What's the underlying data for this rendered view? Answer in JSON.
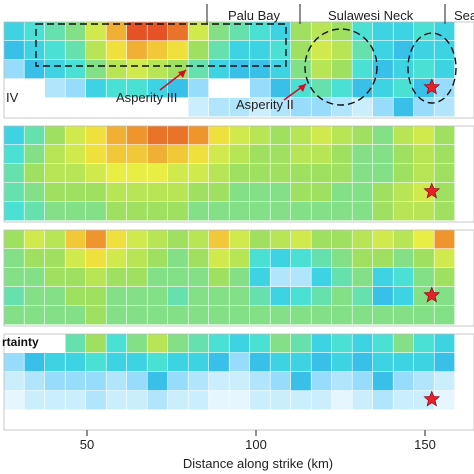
{
  "figure": {
    "xlabel": "Distance along strike (km)",
    "x_ticks": [
      50,
      100,
      150
    ],
    "region_labels": [
      "Palu Bay",
      "Sulawesi Neck",
      "Sea"
    ],
    "asperity_labels": [
      "IV",
      "Asperity III",
      "Asperity II"
    ],
    "panel4_label": "rtainty",
    "epicenter_symbol": "red-star",
    "colormap": [
      "#2040d0",
      "#30a0f0",
      "#40e0e0",
      "#a0e060",
      "#f0f040",
      "#f0a030",
      "#e03020"
    ],
    "star_color": "#e8202a"
  },
  "chart_data": {
    "type": "heatmap",
    "xlabel": "Distance along strike (km)",
    "x_ticks": [
      50,
      100,
      150
    ],
    "cell_width_km": 10,
    "epicenter_km": 152,
    "panels": [
      {
        "name": "",
        "rows": [
          [
            0.3,
            0.35,
            0.4,
            0.45,
            0.6,
            0.8,
            0.95,
            0.95,
            0.9,
            0.6,
            0.45,
            0.4,
            0.35,
            0.3,
            0.5,
            0.55,
            0.5,
            0.35,
            0.3,
            0.3,
            0.35,
            0.3
          ],
          [
            0.25,
            0.3,
            0.35,
            0.4,
            0.55,
            0.7,
            0.8,
            0.75,
            0.7,
            0.5,
            0.4,
            0.3,
            0.3,
            0.35,
            0.5,
            0.6,
            0.55,
            0.4,
            0.3,
            0.25,
            0.3,
            0.3
          ],
          [
            0.2,
            0.25,
            0.3,
            0.35,
            0.45,
            0.55,
            0.6,
            0.55,
            0.5,
            0.4,
            0.3,
            0.25,
            0.25,
            0.3,
            0.45,
            0.55,
            0.5,
            0.35,
            0.25,
            0.3,
            0.35,
            0.3
          ],
          [
            0.0,
            0.0,
            0.15,
            0.2,
            0.3,
            0.35,
            0.35,
            0.3,
            0.25,
            0.2,
            0.0,
            0.0,
            0.2,
            0.25,
            0.35,
            0.4,
            0.35,
            0.25,
            0.3,
            0.35,
            0.25,
            0.2
          ],
          [
            0.0,
            0.0,
            0.0,
            0.0,
            0.0,
            0.0,
            0.0,
            0.0,
            0.0,
            0.1,
            0.15,
            0.15,
            0.1,
            0.15,
            0.2,
            0.2,
            0.15,
            0.1,
            0.2,
            0.25,
            0.2,
            0.15
          ]
        ]
      },
      {
        "name": "",
        "rows": [
          [
            0.3,
            0.4,
            0.5,
            0.6,
            0.7,
            0.8,
            0.85,
            0.9,
            0.9,
            0.85,
            0.7,
            0.6,
            0.55,
            0.5,
            0.55,
            0.6,
            0.55,
            0.5,
            0.45,
            0.55,
            0.6,
            0.5
          ],
          [
            0.35,
            0.45,
            0.55,
            0.6,
            0.7,
            0.75,
            0.75,
            0.8,
            0.75,
            0.7,
            0.6,
            0.55,
            0.5,
            0.5,
            0.55,
            0.55,
            0.5,
            0.45,
            0.45,
            0.5,
            0.55,
            0.5
          ],
          [
            0.4,
            0.5,
            0.55,
            0.55,
            0.6,
            0.65,
            0.65,
            0.65,
            0.6,
            0.6,
            0.55,
            0.5,
            0.5,
            0.5,
            0.5,
            0.5,
            0.5,
            0.45,
            0.45,
            0.5,
            0.55,
            0.5
          ],
          [
            0.4,
            0.45,
            0.5,
            0.5,
            0.5,
            0.55,
            0.55,
            0.55,
            0.55,
            0.5,
            0.5,
            0.45,
            0.45,
            0.45,
            0.5,
            0.5,
            0.45,
            0.45,
            0.5,
            0.55,
            0.6,
            0.5
          ],
          [
            0.35,
            0.4,
            0.45,
            0.45,
            0.45,
            0.5,
            0.5,
            0.5,
            0.5,
            0.45,
            0.45,
            0.45,
            0.45,
            0.45,
            0.45,
            0.45,
            0.45,
            0.45,
            0.5,
            0.55,
            0.55,
            0.5
          ]
        ]
      },
      {
        "name": "",
        "rows": [
          [
            0.5,
            0.6,
            0.55,
            0.75,
            0.85,
            0.7,
            0.6,
            0.55,
            0.5,
            0.55,
            0.75,
            0.6,
            0.5,
            0.55,
            0.6,
            0.5,
            0.5,
            0.55,
            0.6,
            0.55,
            0.65,
            0.85
          ],
          [
            0.45,
            0.5,
            0.5,
            0.6,
            0.7,
            0.6,
            0.55,
            0.5,
            0.45,
            0.5,
            0.6,
            0.55,
            0.35,
            0.3,
            0.35,
            0.4,
            0.45,
            0.5,
            0.5,
            0.45,
            0.5,
            0.6
          ],
          [
            0.45,
            0.45,
            0.5,
            0.5,
            0.55,
            0.5,
            0.5,
            0.45,
            0.45,
            0.45,
            0.5,
            0.45,
            0.3,
            0.15,
            0.15,
            0.3,
            0.4,
            0.45,
            0.3,
            0.35,
            0.45,
            0.5
          ],
          [
            0.4,
            0.45,
            0.45,
            0.5,
            0.5,
            0.45,
            0.45,
            0.45,
            0.4,
            0.45,
            0.45,
            0.45,
            0.4,
            0.3,
            0.35,
            0.4,
            0.45,
            0.4,
            0.25,
            0.3,
            0.45,
            0.45
          ],
          [
            0.45,
            0.45,
            0.45,
            0.45,
            0.5,
            0.45,
            0.45,
            0.45,
            0.45,
            0.45,
            0.45,
            0.45,
            0.45,
            0.45,
            0.45,
            0.45,
            0.45,
            0.45,
            0.45,
            0.45,
            0.45,
            0.45
          ]
        ]
      },
      {
        "name": "",
        "rows": [
          [
            0.0,
            0.0,
            0.0,
            0.4,
            0.5,
            0.35,
            0.45,
            0.55,
            0.45,
            0.4,
            0.35,
            0.3,
            0.35,
            0.45,
            0.4,
            0.3,
            0.35,
            0.3,
            0.35,
            0.45,
            0.35,
            0.3
          ],
          [
            0.2,
            0.25,
            0.3,
            0.3,
            0.35,
            0.3,
            0.3,
            0.35,
            0.3,
            0.3,
            0.25,
            0.2,
            0.25,
            0.3,
            0.3,
            0.25,
            0.3,
            0.25,
            0.3,
            0.3,
            0.3,
            0.25
          ],
          [
            0.1,
            0.15,
            0.2,
            0.2,
            0.2,
            0.15,
            0.2,
            0.25,
            0.2,
            0.15,
            0.1,
            0.1,
            0.15,
            0.2,
            0.25,
            0.2,
            0.15,
            0.2,
            0.25,
            0.2,
            0.15,
            0.1
          ],
          [
            0.05,
            0.1,
            0.1,
            0.1,
            0.15,
            0.1,
            0.1,
            0.15,
            0.1,
            0.1,
            0.05,
            0.05,
            0.1,
            0.1,
            0.1,
            0.1,
            0.05,
            0.1,
            0.15,
            0.1,
            0.1,
            0.05
          ]
        ]
      }
    ]
  }
}
